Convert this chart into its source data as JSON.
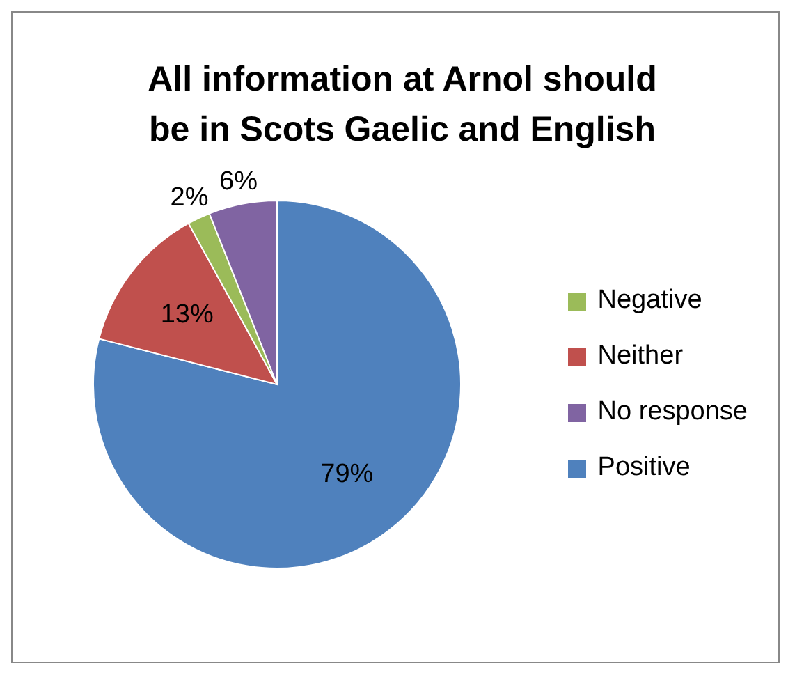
{
  "chart_data": {
    "type": "pie",
    "title": "All information at Arnol should be in Scots Gaelic and English",
    "categories": [
      "Positive",
      "Neither",
      "Negative",
      "No response"
    ],
    "values": [
      79,
      13,
      2,
      6
    ],
    "value_labels": [
      "79%",
      "13%",
      "2%",
      "6%"
    ],
    "colors": [
      "#4f81bd",
      "#c0504d",
      "#9bbb59",
      "#8064a2"
    ],
    "legend": "right"
  }
}
